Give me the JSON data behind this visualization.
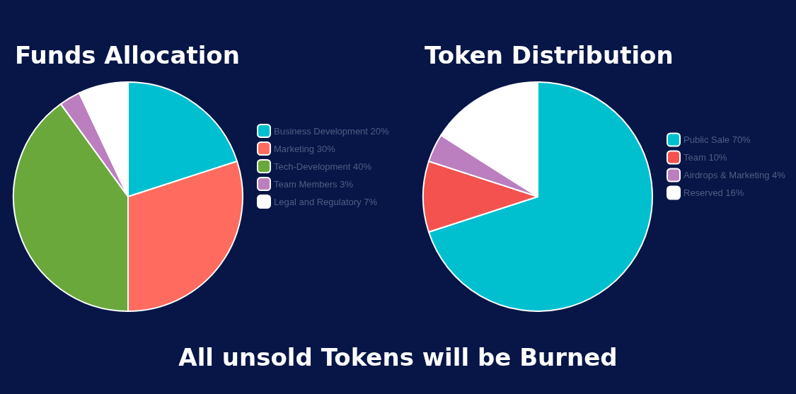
{
  "chart_data": [
    {
      "type": "pie",
      "title": "Funds Allocation",
      "categories": [
        "Business Development 20%",
        "Marketing 30%",
        "Tech-Development 40%",
        "Team Members 3%",
        "Legal and Regulatory 7%"
      ],
      "values": [
        20,
        30,
        40,
        3,
        7
      ],
      "colors": [
        "#00bfd0",
        "#ff6b5f",
        "#6aa83c",
        "#bb7fbf",
        "#ffffff"
      ],
      "legend": "right"
    },
    {
      "type": "pie",
      "title": "Token Distribution",
      "categories": [
        "Public Sale 70%",
        "Team 10%",
        "Airdrops & Marketing 4%",
        "Reserved 16%"
      ],
      "values": [
        70,
        10,
        4,
        16
      ],
      "colors": [
        "#00c0d0",
        "#f3524f",
        "#bb7fbf",
        "#ffffff"
      ],
      "legend": "right",
      "annotations": [
        "All unsold Tokens will be Burned"
      ]
    }
  ]
}
